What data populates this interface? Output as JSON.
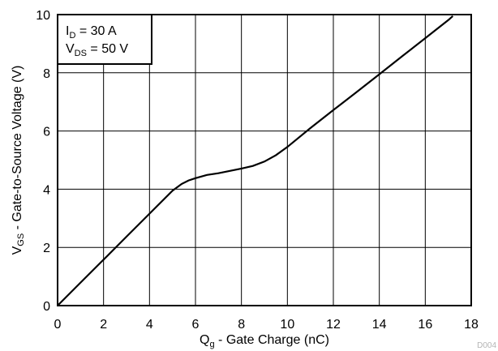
{
  "chart_data": {
    "type": "line",
    "xlabel": {
      "main": "Q",
      "sub": "g",
      "rest": " - Gate Charge (nC)"
    },
    "ylabel": {
      "main": "V",
      "sub": "GS",
      "rest": " - Gate-to-Source Voltage (V)"
    },
    "xlim": [
      0,
      18
    ],
    "ylim": [
      0,
      10
    ],
    "xticks": [
      "0",
      "2",
      "4",
      "6",
      "8",
      "10",
      "12",
      "14",
      "16",
      "18"
    ],
    "yticks": [
      "0",
      "2",
      "4",
      "6",
      "8",
      "10"
    ],
    "grid": true,
    "legend_position": "top-left",
    "annotations": [
      {
        "main": "I",
        "sub": "D",
        "rest": " = 30 A"
      },
      {
        "main": "V",
        "sub": "DS",
        "rest": " = 50 V"
      }
    ],
    "series": [
      {
        "x": [
          0,
          1,
          2,
          3,
          4,
          5,
          5.4,
          5.7,
          6,
          6.5,
          7,
          7.5,
          8,
          8.5,
          9,
          9.5,
          10,
          11,
          12,
          13,
          14,
          15,
          16,
          17,
          17.2
        ],
        "y": [
          0,
          0.79,
          1.58,
          2.37,
          3.16,
          3.95,
          4.18,
          4.3,
          4.38,
          4.49,
          4.55,
          4.63,
          4.71,
          4.8,
          4.95,
          5.17,
          5.45,
          6.1,
          6.72,
          7.33,
          7.95,
          8.57,
          9.19,
          9.81,
          9.95
        ]
      }
    ],
    "watermark": "D004"
  }
}
